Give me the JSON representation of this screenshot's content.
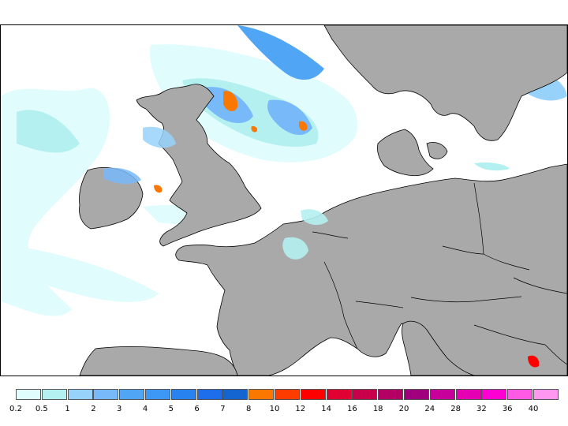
{
  "legend": {
    "colors": [
      "#e0fcfc",
      "#b4f0f0",
      "#96d2fa",
      "#78b9fa",
      "#50a5f5",
      "#3c97f5",
      "#2882f0",
      "#1e6eeb",
      "#1464d2",
      "#fa7800",
      "#ff3c00",
      "#ff0000",
      "#e10032",
      "#c8004b",
      "#b40064",
      "#a0007d",
      "#c8009b",
      "#e600b4",
      "#ff00d2",
      "#ff5ae6",
      "#ff96f0"
    ],
    "labels": [
      "0.2",
      "0.5",
      "1",
      "2",
      "3",
      "4",
      "5",
      "6",
      "7",
      "8",
      "10",
      "12",
      "14",
      "16",
      "18",
      "20",
      "24",
      "28",
      "32",
      "36",
      "40"
    ]
  },
  "map": {
    "land_color": "#a9a9a9",
    "sea_color": "#ffffff",
    "border_color": "#000000"
  }
}
